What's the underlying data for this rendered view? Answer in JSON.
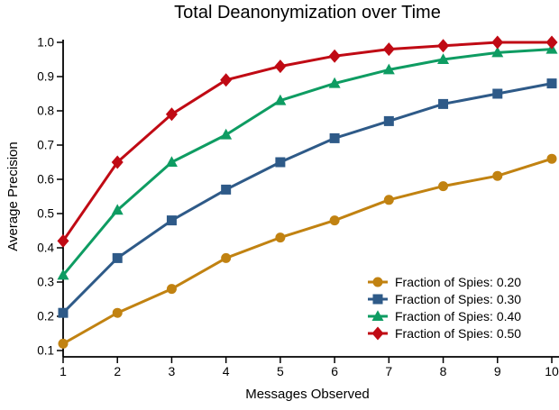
{
  "chart_data": {
    "type": "line",
    "title": "Total Deanonymization over Time",
    "xlabel": "Messages Observed",
    "ylabel": "Average Precision",
    "x": [
      1,
      2,
      3,
      4,
      5,
      6,
      7,
      8,
      9,
      10
    ],
    "xticks": [
      1,
      2,
      3,
      4,
      5,
      6,
      7,
      8,
      9,
      10
    ],
    "yticks": [
      0.1,
      0.2,
      0.3,
      0.4,
      0.5,
      0.6,
      0.7,
      0.8,
      0.9,
      1.0
    ],
    "xlim": [
      1,
      10
    ],
    "ylim": [
      0.1,
      1.0
    ],
    "grid": false,
    "legend_position": "lower right",
    "axis_color": "#000000",
    "series": [
      {
        "name": "Fraction of Spies: 0.20",
        "marker": "circle",
        "color": "#C18211",
        "values": [
          0.12,
          0.21,
          0.28,
          0.37,
          0.43,
          0.48,
          0.54,
          0.58,
          0.61,
          0.66
        ]
      },
      {
        "name": "Fraction of Spies: 0.30",
        "marker": "square",
        "color": "#2E5A88",
        "values": [
          0.21,
          0.37,
          0.48,
          0.57,
          0.65,
          0.72,
          0.77,
          0.82,
          0.85,
          0.88
        ]
      },
      {
        "name": "Fraction of Spies: 0.40",
        "marker": "triangle",
        "color": "#0E9C62",
        "values": [
          0.32,
          0.51,
          0.65,
          0.73,
          0.83,
          0.88,
          0.92,
          0.95,
          0.97,
          0.98
        ]
      },
      {
        "name": "Fraction of Spies: 0.50",
        "marker": "diamond",
        "color": "#C00A14",
        "values": [
          0.42,
          0.65,
          0.79,
          0.89,
          0.93,
          0.96,
          0.98,
          0.99,
          1.0,
          1.0
        ]
      }
    ]
  }
}
